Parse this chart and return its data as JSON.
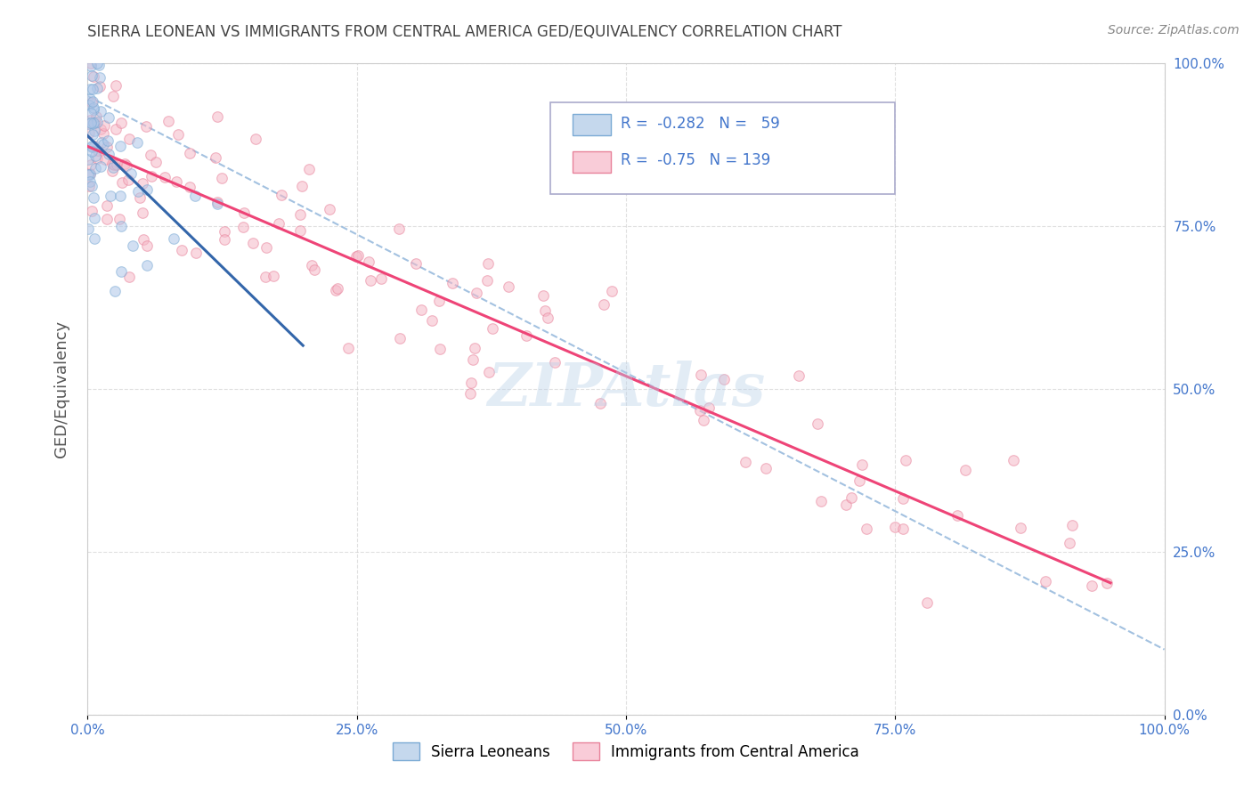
{
  "title": "SIERRA LEONEAN VS IMMIGRANTS FROM CENTRAL AMERICA GED/EQUIVALENCY CORRELATION CHART",
  "source": "Source: ZipAtlas.com",
  "ylabel": "GED/Equivalency",
  "blue_R": -0.282,
  "blue_N": 59,
  "pink_R": -0.75,
  "pink_N": 139,
  "blue_color": "#aec6e8",
  "blue_edge": "#7aaad4",
  "pink_color": "#f5b8c8",
  "pink_edge": "#e8829a",
  "blue_line_color": "#3366aa",
  "pink_line_color": "#ee4477",
  "dash_line_color": "#99bbdd",
  "legend_blue_fill": "#c5d8ed",
  "legend_pink_fill": "#f9ccd8",
  "axis_label_color": "#4477cc",
  "watermark": "ZIPAtlas",
  "xlim": [
    0,
    100
  ],
  "ylim": [
    0,
    100
  ],
  "xticks": [
    0,
    25,
    50,
    75,
    100
  ],
  "yticks": [
    0,
    25,
    50,
    75,
    100
  ],
  "xticklabels": [
    "0.0%",
    "25.0%",
    "50.0%",
    "75.0%",
    "100.0%"
  ],
  "yticklabels": [
    "0.0%",
    "25.0%",
    "50.0%",
    "75.0%",
    "100.0%"
  ],
  "marker_size": 70,
  "alpha": 0.55,
  "background_color": "#ffffff",
  "grid_color": "#cccccc",
  "grid_style": "--",
  "grid_alpha": 0.6
}
